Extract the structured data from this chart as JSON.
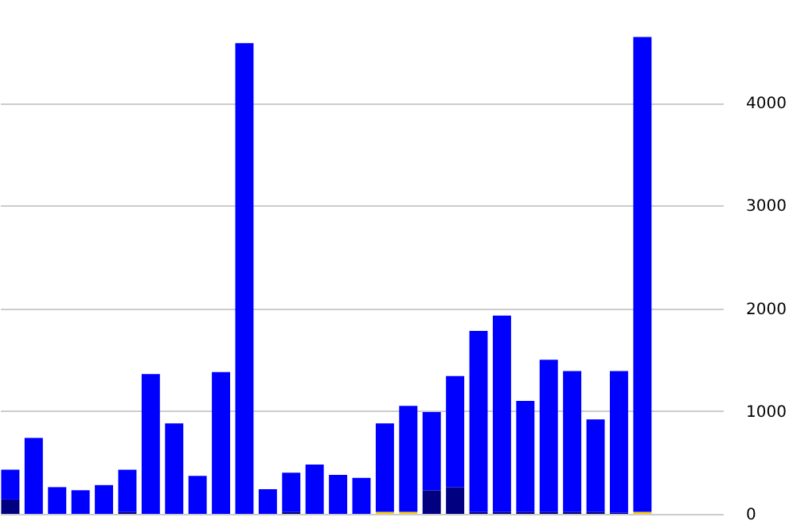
{
  "chart_data": {
    "type": "bar",
    "stacked": true,
    "categories": [
      null,
      null,
      null,
      null,
      null,
      null,
      null,
      null,
      null,
      null,
      null,
      null,
      null,
      null,
      null,
      null,
      null,
      null,
      null,
      null,
      null,
      null,
      null,
      null,
      null,
      null,
      null,
      null,
      null,
      null,
      null
    ],
    "series": [
      {
        "color": "#000080",
        "values": [
          140,
          0,
          0,
          0,
          0,
          20,
          0,
          0,
          0,
          0,
          0,
          0,
          20,
          0,
          0,
          0,
          0,
          0,
          230,
          260,
          20,
          20,
          20,
          20,
          20,
          20,
          10,
          0,
          0,
          0,
          0
        ]
      },
      {
        "color": "#ffcc00",
        "values": [
          0,
          0,
          0,
          0,
          0,
          0,
          0,
          0,
          0,
          0,
          0,
          0,
          0,
          0,
          0,
          0,
          20,
          20,
          0,
          0,
          0,
          0,
          0,
          0,
          0,
          0,
          0,
          20,
          0,
          0,
          0
        ]
      },
      {
        "color": "#0000ff",
        "values": [
          290,
          740,
          260,
          230,
          280,
          410,
          1360,
          880,
          370,
          1380,
          4580,
          240,
          380,
          480,
          380,
          350,
          860,
          1030,
          760,
          1080,
          1760,
          1910,
          1080,
          1480,
          1370,
          900,
          1380,
          4620,
          0,
          0,
          0
        ]
      }
    ],
    "ylim": [
      0,
      5000
    ],
    "yticks": [
      0,
      1000,
      2000,
      3000,
      4000
    ],
    "grid": "y",
    "legend": false,
    "tick_labels": "y"
  }
}
